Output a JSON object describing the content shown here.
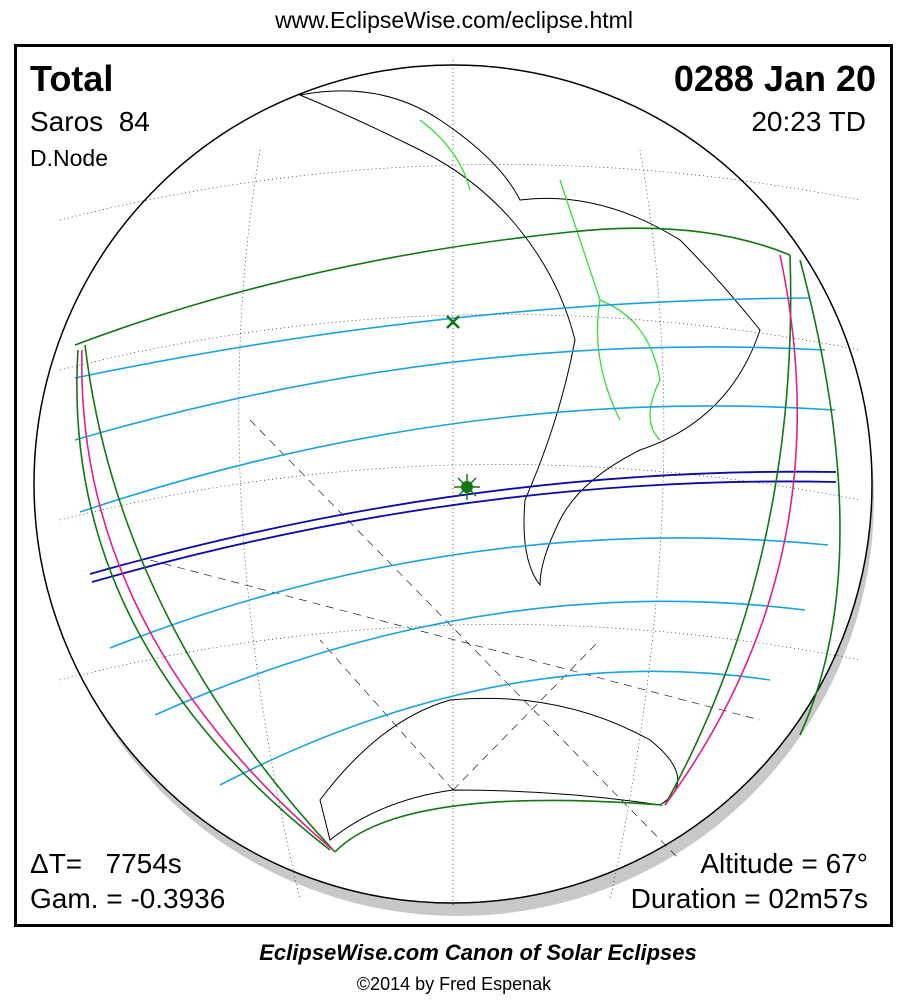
{
  "header": {
    "url": "www.EclipseWise.com/eclipse.html"
  },
  "eclipse": {
    "type": "Total",
    "date": "0288 Jan 20",
    "saros": "Saros  84",
    "time": "20:23 TD",
    "node": "D.Node",
    "delta_t": "ΔT=   7754s",
    "gamma": "Gam. = -0.3936",
    "altitude": "Altitude = 67°",
    "duration": "Duration = 02m57s"
  },
  "footer": {
    "title": "EclipseWise.com Canon of Solar Eclipses",
    "copyright": "©2014 by Fred Espenak"
  }
}
